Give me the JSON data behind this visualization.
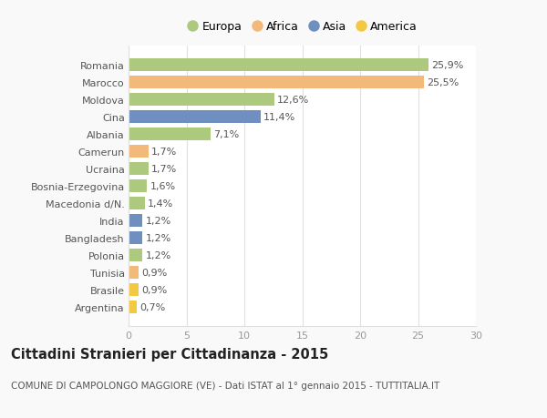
{
  "countries": [
    "Romania",
    "Marocco",
    "Moldova",
    "Cina",
    "Albania",
    "Camerun",
    "Ucraina",
    "Bosnia-Erzegovina",
    "Macedonia d/N.",
    "India",
    "Bangladesh",
    "Polonia",
    "Tunisia",
    "Brasile",
    "Argentina"
  ],
  "values": [
    25.9,
    25.5,
    12.6,
    11.4,
    7.1,
    1.7,
    1.7,
    1.6,
    1.4,
    1.2,
    1.2,
    1.2,
    0.9,
    0.9,
    0.7
  ],
  "labels": [
    "25,9%",
    "25,5%",
    "12,6%",
    "11,4%",
    "7,1%",
    "1,7%",
    "1,7%",
    "1,6%",
    "1,4%",
    "1,2%",
    "1,2%",
    "1,2%",
    "0,9%",
    "0,9%",
    "0,7%"
  ],
  "colors": [
    "#adc97e",
    "#f2b97b",
    "#adc97e",
    "#6e8fbf",
    "#adc97e",
    "#f2b97b",
    "#adc97e",
    "#adc97e",
    "#adc97e",
    "#6e8fbf",
    "#6e8fbf",
    "#adc97e",
    "#f2b97b",
    "#f5c842",
    "#f5c842"
  ],
  "legend_labels": [
    "Europa",
    "Africa",
    "Asia",
    "America"
  ],
  "legend_colors": [
    "#adc97e",
    "#f2b97b",
    "#6e8fbf",
    "#f5c842"
  ],
  "title": "Cittadini Stranieri per Cittadinanza - 2015",
  "subtitle": "COMUNE DI CAMPOLONGO MAGGIORE (VE) - Dati ISTAT al 1° gennaio 2015 - TUTTITALIA.IT",
  "xlim": [
    0,
    30
  ],
  "xticks": [
    0,
    5,
    10,
    15,
    20,
    25,
    30
  ],
  "plot_bg_color": "#ffffff",
  "fig_bg_color": "#f9f9f9",
  "grid_color": "#e0e0e0",
  "bar_height": 0.75,
  "label_fontsize": 8,
  "tick_fontsize": 8,
  "ytick_fontsize": 8,
  "title_fontsize": 10.5,
  "subtitle_fontsize": 7.5
}
